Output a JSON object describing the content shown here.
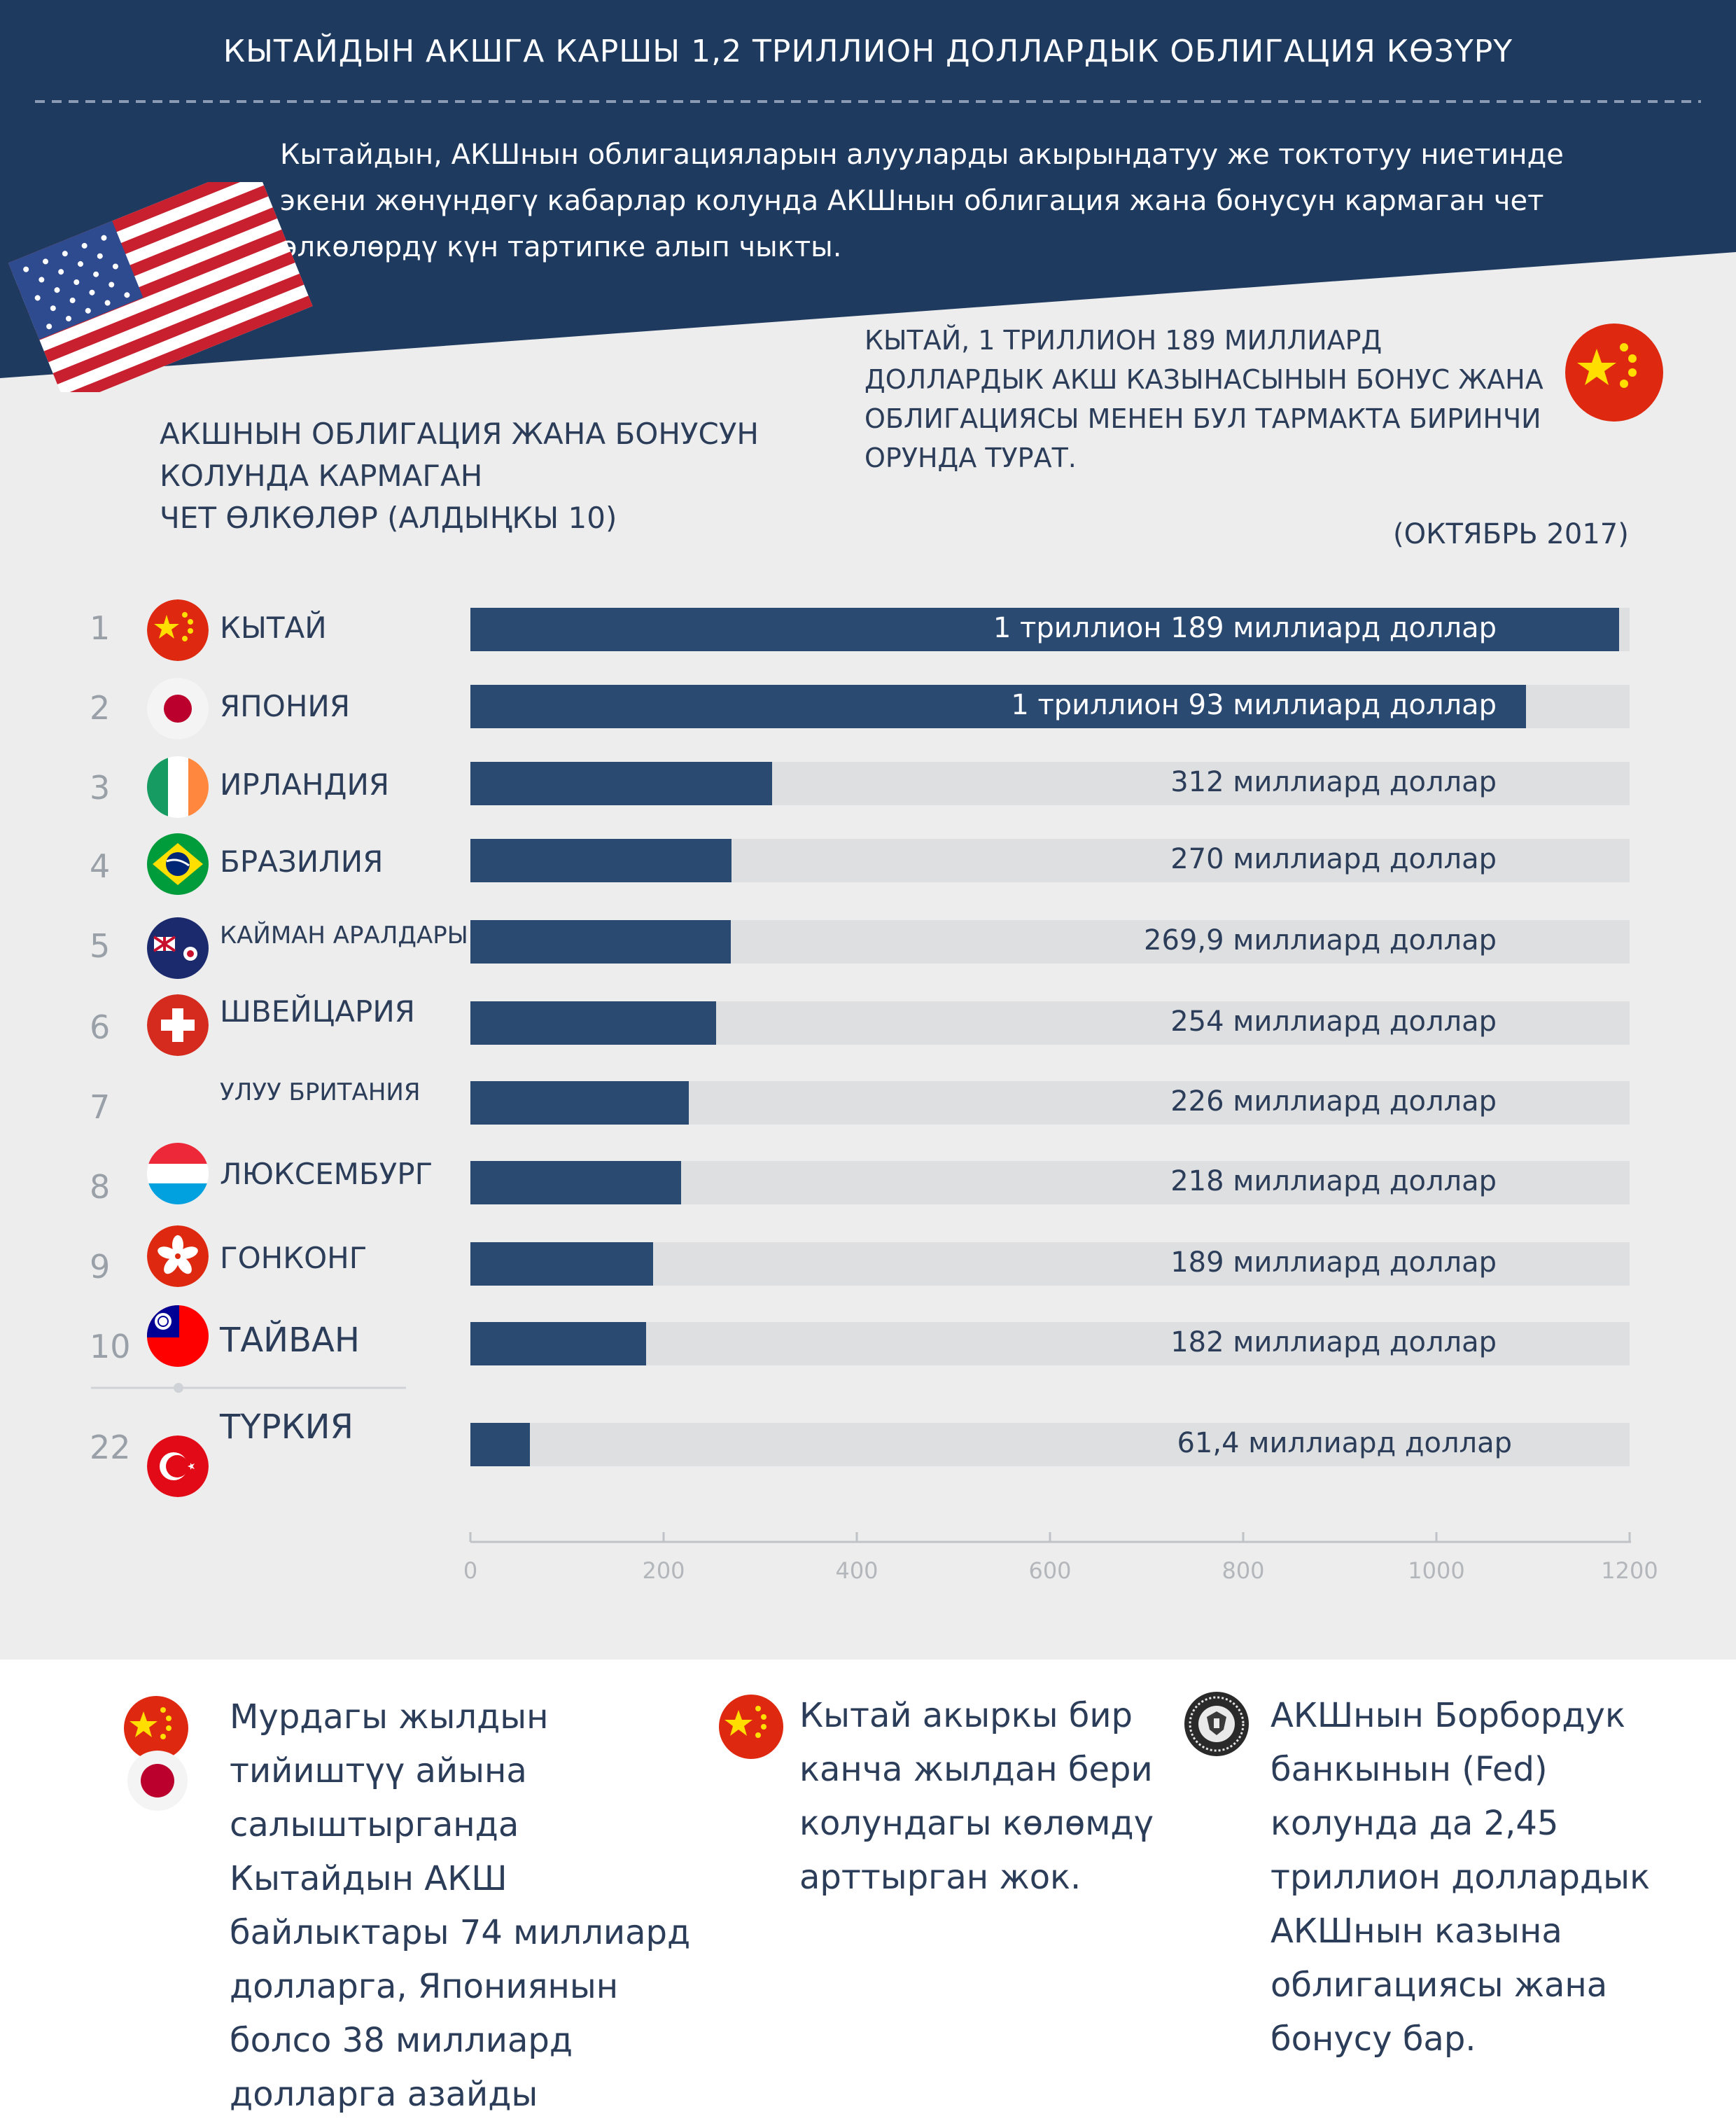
{
  "header": {
    "title": "КЫТАЙДЫН АКШГА КАРШЫ 1,2 ТРИЛЛИОН ДОЛЛАРДЫК ОБЛИГАЦИЯ КӨЗҮРҮ",
    "intro": "Кытайдын, АКШнын облигацияларын алууларды акырындатуу же токтотуу ниетинде экени жөнүндөгү кабарлар колунда АКШнын облигация жана  бонусун кармаган чет өлкөлөрдү күн тартипке алып чыкты."
  },
  "china_note": "КЫТАЙ, 1 ТРИЛЛИОН 189 МИЛЛИАРД ДОЛЛАРДЫК АКШ КАЗЫНАСЫНЫН БОНУС ЖАНА ОБЛИГАЦИЯСЫ МЕНЕН БУЛ ТАРМАКТА БИРИНЧИ ОРУНДА ТУРАТ.",
  "section_title": {
    "line1": "АКШНЫН ОБЛИГАЦИЯ ЖАНА БОНУСУН",
    "line2": "КОЛУНДА КАРМАГАН",
    "line3": "ЧЕТ ӨЛКӨЛӨР (АЛДЫҢКЫ 10)"
  },
  "date_label": "(ОКТЯБРЬ 2017)",
  "colors": {
    "navy": "#1f3a5f",
    "bar": "#2b4a72",
    "track": "#dedfe1",
    "text": "#2b3d59",
    "rank": "#9aa0a8"
  },
  "chart_data": {
    "type": "bar",
    "orientation": "horizontal",
    "title": "АКШНЫН ОБЛИГАЦИЯ ЖАНА БОНУСУН КОЛУНДА КАРМАГАН ЧЕТ ӨЛКӨЛӨР (АЛДЫҢКЫ 10)",
    "unit": "миллиард доллар",
    "xlim": [
      0,
      1200
    ],
    "ticks": [
      "0",
      "200",
      "400",
      "600",
      "800",
      "1000",
      "1200"
    ],
    "rows": [
      {
        "rank": "1",
        "name": "КЫТАЙ",
        "value": 1189,
        "label": "1 триллион 189 миллиард доллар",
        "flag": "china-flag"
      },
      {
        "rank": "2",
        "name": "ЯПОНИЯ",
        "value": 1093,
        "label": "1 триллион 93 миллиард доллар",
        "flag": "japan-flag"
      },
      {
        "rank": "3",
        "name": "ИРЛАНДИЯ",
        "value": 312,
        "label": "312 миллиард доллар",
        "flag": "ireland-flag"
      },
      {
        "rank": "4",
        "name": "БРАЗИЛИЯ",
        "value": 270,
        "label": "270 миллиард доллар",
        "flag": "brazil-flag"
      },
      {
        "rank": "5",
        "name": "КАЙМАН АРАЛДАРЫ",
        "value": 269.9,
        "label": "269,9 миллиард доллар",
        "flag": "cayman-flag"
      },
      {
        "rank": "6",
        "name": "ШВЕЙЦАРИЯ",
        "value": 254,
        "label": "254 миллиард доллар",
        "flag": "switzerland-flag"
      },
      {
        "rank": "7",
        "name": "УЛУУ БРИТАНИЯ",
        "value": 226,
        "label": "226 миллиард доллар",
        "flag": "none"
      },
      {
        "rank": "8",
        "name": "ЛЮКСЕМБУРГ",
        "value": 218,
        "label": "218  миллиард доллар",
        "flag": "luxembourg-flag"
      },
      {
        "rank": "9",
        "name": "ГОНКОНГ",
        "value": 189,
        "label": "189 миллиард доллар",
        "flag": "hongkong-flag"
      },
      {
        "rank": "10",
        "name": "ТАЙВАН",
        "value": 182,
        "label": "182 миллиард доллар",
        "flag": "taiwan-flag"
      },
      {
        "rank": "22",
        "name": "ТҮРКИЯ",
        "value": 61.4,
        "label": "61,4 миллиард доллар",
        "flag": "turkey-flag"
      }
    ]
  },
  "notes": [
    {
      "icons": [
        "china-flag",
        "japan-flag"
      ],
      "lines": [
        "Мурдагы жылдын",
        "тийиштүү айына",
        "салыштырганда",
        "Кытайдын АКШ",
        "байлыктары 74 миллиард",
        "долларга, Япониянын",
        "болсо 38 миллиард",
        "долларга азайды"
      ]
    },
    {
      "icons": [
        "china-flag"
      ],
      "lines": [
        "Кытай акыркы бир",
        "канча жылдан бери",
        "колундагы көлөмдү",
        "арттырган жок."
      ]
    },
    {
      "icons": [
        "federal-reserve-seal-icon"
      ],
      "lines": [
        "АКШнын Борбордук",
        "банкынын (Fed)",
        "колунда да 2,45",
        "триллион доллардык",
        "АКШнын казына",
        "облигациясы жана",
        "бонусу бар."
      ]
    }
  ]
}
